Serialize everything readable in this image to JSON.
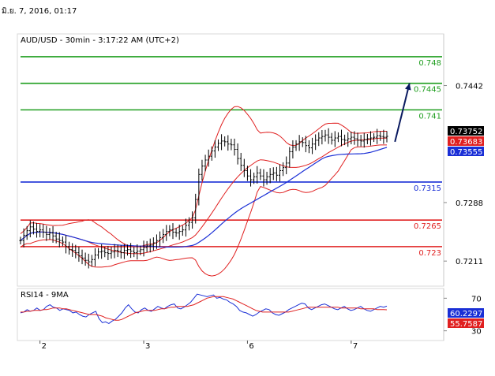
{
  "header": {
    "date_time": "มิ.ย. 7, 2016, 01:17"
  },
  "chart_data": [
    {
      "type": "line",
      "subtype": "candlestick-price-chart",
      "title": "AUD/USD - 30min - 3:17:22 AM (UTC+2)",
      "ylim": [
        0.7178,
        0.751
      ],
      "right_axis_ticks": [
        0.7442,
        0.7288,
        0.7211
      ],
      "x_ticks": [
        {
          "label": "2",
          "bar": 6
        },
        {
          "label": "3",
          "bar": 38
        },
        {
          "label": "6",
          "bar": 70
        },
        {
          "label": "7",
          "bar": 102
        }
      ],
      "levels": [
        {
          "value": 0.748,
          "label": "0.748",
          "color": "#1f9e1f"
        },
        {
          "value": 0.7445,
          "label": "0.7445",
          "color": "#1f9e1f"
        },
        {
          "value": 0.741,
          "label": "0.741",
          "color": "#1f9e1f"
        },
        {
          "value": 0.7315,
          "label": "0.7315",
          "color": "#1a2fd6"
        },
        {
          "value": 0.7265,
          "label": "0.7265",
          "color": "#e02020"
        },
        {
          "value": 0.723,
          "label": "0.723",
          "color": "#e02020"
        }
      ],
      "price_badges": [
        {
          "value": 0.73752,
          "label": "0.73752",
          "bg": "#000000"
        },
        {
          "value": 0.73683,
          "label": "0.73683",
          "bg": "#e02020"
        },
        {
          "value": 0.73555,
          "label": "0.73555",
          "bg": "#1a2fd6"
        }
      ],
      "arrow": {
        "from": [
          115.5,
          0.7368
        ],
        "to": [
          120,
          0.7445
        ],
        "color": "#0a1a60"
      },
      "closes": [
        0.7238,
        0.7245,
        0.7251,
        0.7256,
        0.7253,
        0.725,
        0.7252,
        0.7249,
        0.7246,
        0.7248,
        0.7244,
        0.724,
        0.7238,
        0.7236,
        0.723,
        0.7226,
        0.7225,
        0.7222,
        0.7218,
        0.7215,
        0.7212,
        0.721,
        0.7213,
        0.7219,
        0.7223,
        0.7224,
        0.7222,
        0.7221,
        0.7223,
        0.7225,
        0.7224,
        0.7222,
        0.7225,
        0.7226,
        0.7224,
        0.7222,
        0.7224,
        0.7226,
        0.7229,
        0.7231,
        0.7232,
        0.7235,
        0.7238,
        0.7242,
        0.7246,
        0.725,
        0.7252,
        0.7249,
        0.7248,
        0.725,
        0.7252,
        0.7258,
        0.7262,
        0.7268,
        0.7292,
        0.7325,
        0.7336,
        0.7344,
        0.7349,
        0.7356,
        0.7361,
        0.7366,
        0.7369,
        0.7368,
        0.7365,
        0.7364,
        0.7358,
        0.7346,
        0.7337,
        0.733,
        0.7323,
        0.7318,
        0.7322,
        0.7327,
        0.7323,
        0.7318,
        0.7322,
        0.7325,
        0.7327,
        0.7324,
        0.733,
        0.7334,
        0.734,
        0.7355,
        0.7361,
        0.7365,
        0.7368,
        0.7367,
        0.7363,
        0.736,
        0.7365,
        0.737,
        0.7373,
        0.7375,
        0.7377,
        0.7374,
        0.737,
        0.7373,
        0.7375,
        0.7371,
        0.737,
        0.7372,
        0.7374,
        0.7372,
        0.737,
        0.7369,
        0.7371,
        0.7372,
        0.7373,
        0.7374,
        0.7376,
        0.7375,
        0.7374,
        0.73752
      ]
    },
    {
      "type": "line",
      "title": "RSI14 - 9MA",
      "ylim": [
        20,
        80
      ],
      "right_axis_ticks": [
        70,
        30
      ],
      "price_badges": [
        {
          "value": 60.2297,
          "label": "60.2297",
          "bg": "#1a2fd6"
        },
        {
          "value": 55.7587,
          "label": "55.7587",
          "bg": "#e02020"
        }
      ],
      "series": [
        {
          "name": "RSI14",
          "color": "#1a2fd6",
          "values": [
            52,
            53,
            56,
            54,
            55,
            58,
            55,
            56,
            60,
            62,
            59,
            58,
            55,
            57,
            56,
            55,
            52,
            53,
            50,
            48,
            47,
            50,
            52,
            54,
            45,
            40,
            41,
            39,
            42,
            44,
            48,
            52,
            58,
            62,
            57,
            53,
            52,
            56,
            58,
            55,
            54,
            57,
            60,
            58,
            57,
            60,
            62,
            63,
            58,
            57,
            59,
            62,
            65,
            70,
            75,
            74,
            73,
            72,
            73,
            74,
            70,
            71,
            69,
            68,
            65,
            63,
            60,
            55,
            53,
            52,
            50,
            48,
            50,
            53,
            55,
            57,
            56,
            52,
            50,
            49,
            51,
            53,
            56,
            58,
            60,
            62,
            64,
            63,
            58,
            56,
            58,
            60,
            62,
            63,
            61,
            59,
            57,
            56,
            58,
            60,
            57,
            55,
            56,
            58,
            60,
            57,
            55,
            54,
            56,
            58,
            60,
            59,
            60.2297
          ]
        },
        {
          "name": "9MA",
          "color": "#e02020",
          "values": [
            53,
            53,
            54,
            54,
            55,
            55,
            55,
            56,
            56,
            57,
            58,
            58,
            58,
            57,
            57,
            56,
            55,
            54,
            53,
            52,
            51,
            50,
            50,
            50,
            49,
            48,
            46,
            45,
            44,
            43,
            43,
            44,
            46,
            48,
            50,
            52,
            53,
            54,
            55,
            55,
            55,
            55,
            56,
            57,
            57,
            58,
            59,
            59,
            60,
            60,
            60,
            60,
            61,
            62,
            64,
            66,
            68,
            70,
            71,
            72,
            72,
            72,
            72,
            71,
            70,
            69,
            67,
            65,
            63,
            61,
            59,
            57,
            55,
            54,
            53,
            53,
            53,
            53,
            53,
            53,
            53,
            53,
            53,
            54,
            55,
            56,
            57,
            58,
            59,
            59,
            59,
            59,
            59,
            59,
            59,
            59,
            59,
            59,
            58,
            58,
            58,
            58,
            58,
            58,
            57,
            57,
            57,
            57,
            57,
            56,
            56,
            56,
            55.7587
          ]
        }
      ]
    }
  ]
}
